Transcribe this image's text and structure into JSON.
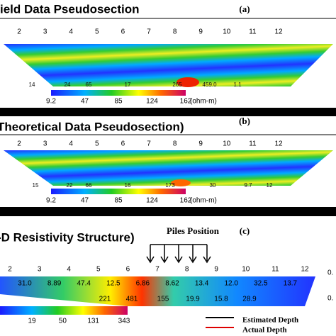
{
  "panels": [
    {
      "title": "ield Data Pseudosection",
      "label": "(a)",
      "electrodes": [
        "2",
        "3",
        "4",
        "5",
        "6",
        "7",
        "8",
        "9",
        "10",
        "11",
        "12"
      ],
      "bottom_values": [
        "14",
        "24",
        "65",
        "17",
        "265",
        "45",
        "9.0",
        "1.1"
      ],
      "colorbar_ticks": [
        "9.2",
        "47",
        "85",
        "124",
        "162"
      ],
      "unit": "(ohm-m)"
    },
    {
      "title": "Theoretical Data Pseudosection)",
      "label": "(b)",
      "electrodes": [
        "2",
        "3",
        "4",
        "5",
        "6",
        "7",
        "8",
        "9",
        "10",
        "11",
        "12"
      ],
      "bottom_values": [
        "15",
        "22",
        "66",
        "16",
        "173",
        "30",
        "9.7",
        "12"
      ],
      "colorbar_ticks": [
        "9.2",
        "47",
        "85",
        "124",
        "162"
      ],
      "unit": "(ohm-m)"
    },
    {
      "title": "-D Resistivity Structure)",
      "label": "(c)",
      "piles": "Piles Position",
      "electrodes": [
        "2",
        "3",
        "4",
        "5",
        "6",
        "7",
        "8",
        "9",
        "10",
        "11",
        "12"
      ],
      "top_values": [
        "31.0",
        "8.89",
        "47.4",
        "12.5",
        "6.86",
        "8.62",
        "13.4",
        "12.0",
        "32.5",
        "13.7"
      ],
      "bottom_values": [
        "221",
        "481",
        "155",
        "19.9",
        "15.8",
        "28.9"
      ],
      "right_labels": [
        "0.",
        "0."
      ],
      "colorbar_ticks": [
        "19",
        "50",
        "131",
        "343"
      ],
      "legend": [
        "Estimated Depth",
        "Actual Depth"
      ]
    }
  ]
}
